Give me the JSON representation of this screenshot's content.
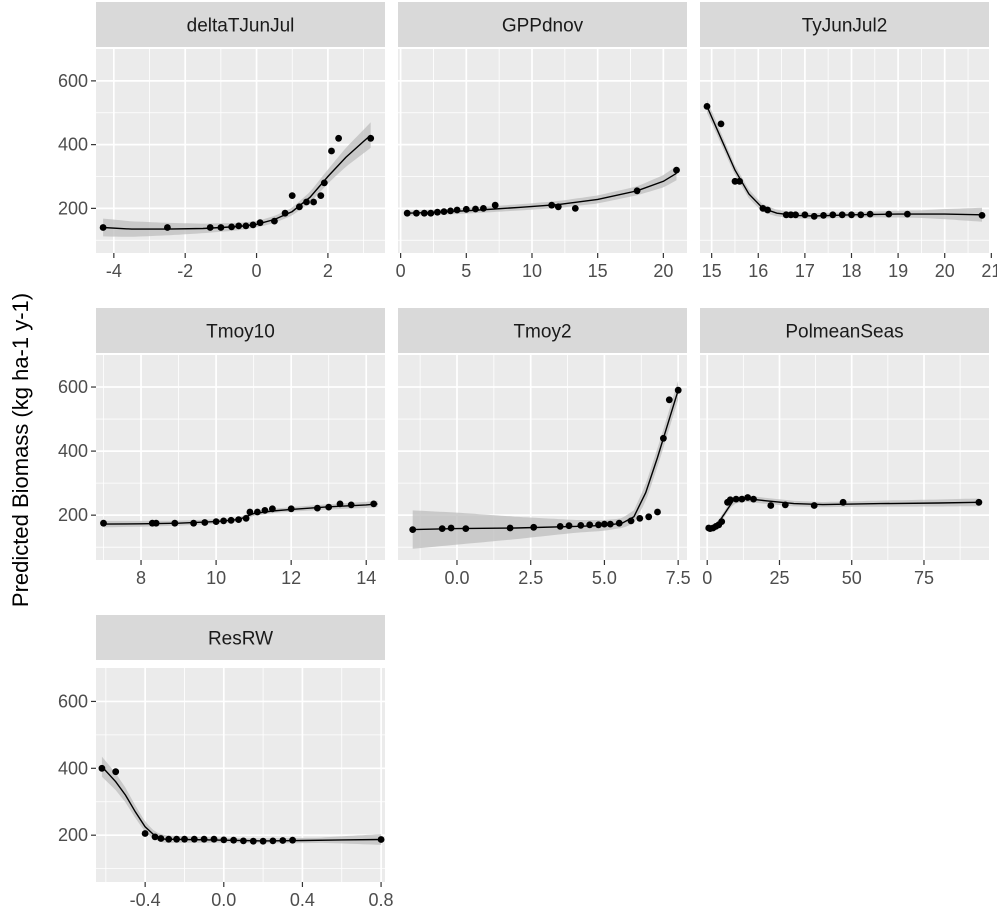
{
  "chart_data": {
    "type": "scatter",
    "layout": "facet-wrap",
    "ylabel": "Predicted Biomass (kg ha-1 y-1)",
    "xlabel": "",
    "shared_y": {
      "ylim": [
        60,
        700
      ],
      "ticks": [
        200,
        400,
        600
      ],
      "tick_labels": [
        "200",
        "400",
        "600"
      ]
    },
    "colors": {
      "panel_bg": "#ebebeb",
      "strip_bg": "#d9d9d9",
      "grid": "#ffffff",
      "points": "#000000",
      "line": "#000000",
      "ribbon": "#bdbdbd"
    },
    "panels": [
      {
        "name": "deltaTJunJul",
        "xlim": [
          -4.5,
          3.6
        ],
        "x_ticks": [
          -4,
          -2,
          0,
          2
        ],
        "x_tick_labels": [
          "-4",
          "-2",
          "0",
          "2"
        ],
        "points": [
          [
            -4.3,
            140
          ],
          [
            -2.5,
            140
          ],
          [
            -1.3,
            140
          ],
          [
            -1.0,
            140
          ],
          [
            -0.7,
            142
          ],
          [
            -0.5,
            145
          ],
          [
            -0.3,
            145
          ],
          [
            -0.1,
            148
          ],
          [
            0.1,
            155
          ],
          [
            0.5,
            160
          ],
          [
            0.8,
            185
          ],
          [
            1.0,
            240
          ],
          [
            1.2,
            205
          ],
          [
            1.4,
            220
          ],
          [
            1.6,
            220
          ],
          [
            1.8,
            240
          ],
          [
            1.9,
            280
          ],
          [
            2.1,
            380
          ],
          [
            2.3,
            420
          ],
          [
            3.2,
            420
          ]
        ],
        "curve": [
          [
            -4.3,
            140
          ],
          [
            -3.5,
            135
          ],
          [
            -2.5,
            135
          ],
          [
            -1.5,
            137
          ],
          [
            -0.5,
            143
          ],
          [
            0.0,
            150
          ],
          [
            0.5,
            165
          ],
          [
            1.0,
            190
          ],
          [
            1.5,
            235
          ],
          [
            2.0,
            300
          ],
          [
            2.5,
            360
          ],
          [
            3.0,
            410
          ],
          [
            3.2,
            430
          ]
        ],
        "ribbon_width": [
          [
            -4.3,
            28
          ],
          [
            -3.0,
            22
          ],
          [
            -1.5,
            15
          ],
          [
            0.0,
            10
          ],
          [
            1.0,
            12
          ],
          [
            2.0,
            22
          ],
          [
            3.2,
            40
          ]
        ]
      },
      {
        "name": "GPPdnov",
        "xlim": [
          -0.2,
          21.8
        ],
        "x_ticks": [
          0,
          5,
          10,
          15,
          20
        ],
        "x_tick_labels": [
          "0",
          "5",
          "10",
          "15",
          "20"
        ],
        "points": [
          [
            0.5,
            185
          ],
          [
            1.2,
            185
          ],
          [
            1.8,
            185
          ],
          [
            2.3,
            185
          ],
          [
            2.8,
            188
          ],
          [
            3.3,
            190
          ],
          [
            3.8,
            192
          ],
          [
            4.3,
            195
          ],
          [
            5.0,
            197
          ],
          [
            5.7,
            198
          ],
          [
            6.3,
            200
          ],
          [
            7.2,
            210
          ],
          [
            11.5,
            210
          ],
          [
            12.0,
            205
          ],
          [
            13.3,
            200
          ],
          [
            18.0,
            255
          ],
          [
            21.0,
            320
          ]
        ],
        "curve": [
          [
            0.5,
            185
          ],
          [
            3.0,
            188
          ],
          [
            6.0,
            195
          ],
          [
            9.0,
            203
          ],
          [
            12.0,
            212
          ],
          [
            15.0,
            228
          ],
          [
            18.0,
            255
          ],
          [
            20.0,
            285
          ],
          [
            21.0,
            310
          ]
        ],
        "ribbon_width": [
          [
            0.5,
            8
          ],
          [
            10.0,
            10
          ],
          [
            18.0,
            14
          ],
          [
            21.0,
            22
          ]
        ]
      },
      {
        "name": "TyJunJul2",
        "xlim": [
          14.75,
          20.95
        ],
        "x_ticks": [
          15,
          16,
          17,
          18,
          19,
          20,
          21
        ],
        "x_tick_labels": [
          "15",
          "16",
          "17",
          "18",
          "19",
          "20",
          "21"
        ],
        "points": [
          [
            14.9,
            520
          ],
          [
            15.2,
            465
          ],
          [
            15.5,
            285
          ],
          [
            15.6,
            285
          ],
          [
            16.1,
            200
          ],
          [
            16.2,
            195
          ],
          [
            16.6,
            180
          ],
          [
            16.7,
            180
          ],
          [
            16.8,
            180
          ],
          [
            17.0,
            180
          ],
          [
            17.2,
            175
          ],
          [
            17.4,
            178
          ],
          [
            17.6,
            180
          ],
          [
            17.8,
            180
          ],
          [
            18.0,
            180
          ],
          [
            18.2,
            180
          ],
          [
            18.4,
            182
          ],
          [
            18.8,
            182
          ],
          [
            19.2,
            182
          ],
          [
            20.8,
            178
          ]
        ],
        "curve": [
          [
            14.9,
            520
          ],
          [
            15.2,
            420
          ],
          [
            15.5,
            320
          ],
          [
            15.8,
            245
          ],
          [
            16.1,
            200
          ],
          [
            16.4,
            185
          ],
          [
            16.8,
            178
          ],
          [
            17.2,
            176
          ],
          [
            18.0,
            180
          ],
          [
            19.0,
            182
          ],
          [
            20.0,
            182
          ],
          [
            20.8,
            180
          ]
        ],
        "ribbon_width": [
          [
            14.9,
            20
          ],
          [
            15.5,
            15
          ],
          [
            16.5,
            10
          ],
          [
            18.0,
            8
          ],
          [
            19.5,
            12
          ],
          [
            20.8,
            22
          ]
        ]
      },
      {
        "name": "Tmoy10",
        "xlim": [
          6.8,
          14.5
        ],
        "x_ticks": [
          8,
          10,
          12,
          14
        ],
        "x_tick_labels": [
          "8",
          "10",
          "12",
          "14"
        ],
        "points": [
          [
            7.0,
            175
          ],
          [
            8.3,
            175
          ],
          [
            8.4,
            175
          ],
          [
            8.9,
            175
          ],
          [
            9.4,
            175
          ],
          [
            9.7,
            177
          ],
          [
            10.0,
            180
          ],
          [
            10.2,
            182
          ],
          [
            10.4,
            184
          ],
          [
            10.6,
            186
          ],
          [
            10.8,
            190
          ],
          [
            10.9,
            210
          ],
          [
            11.1,
            210
          ],
          [
            11.3,
            215
          ],
          [
            11.5,
            220
          ],
          [
            12.0,
            220
          ],
          [
            12.7,
            222
          ],
          [
            13.0,
            225
          ],
          [
            13.3,
            235
          ],
          [
            13.6,
            232
          ],
          [
            14.2,
            235
          ]
        ],
        "curve": [
          [
            7.0,
            172
          ],
          [
            8.0,
            173
          ],
          [
            9.0,
            175
          ],
          [
            10.0,
            180
          ],
          [
            10.6,
            186
          ],
          [
            11.0,
            205
          ],
          [
            11.5,
            213
          ],
          [
            12.0,
            218
          ],
          [
            13.0,
            226
          ],
          [
            14.0,
            232
          ],
          [
            14.3,
            235
          ]
        ],
        "ribbon_width": [
          [
            7.0,
            10
          ],
          [
            10.0,
            7
          ],
          [
            12.0,
            7
          ],
          [
            14.3,
            10
          ]
        ]
      },
      {
        "name": "Tmoy2",
        "xlim": [
          -2.0,
          7.8
        ],
        "x_ticks": [
          0.0,
          2.5,
          5.0,
          7.5
        ],
        "x_tick_labels": [
          "0.0",
          "2.5",
          "5.0",
          "7.5"
        ],
        "points": [
          [
            -1.5,
            155
          ],
          [
            -0.5,
            158
          ],
          [
            -0.2,
            160
          ],
          [
            0.3,
            158
          ],
          [
            1.8,
            160
          ],
          [
            2.6,
            162
          ],
          [
            3.5,
            165
          ],
          [
            3.8,
            167
          ],
          [
            4.2,
            168
          ],
          [
            4.5,
            170
          ],
          [
            4.8,
            170
          ],
          [
            5.0,
            172
          ],
          [
            5.2,
            172
          ],
          [
            5.5,
            175
          ],
          [
            5.9,
            182
          ],
          [
            6.2,
            190
          ],
          [
            6.5,
            195
          ],
          [
            6.8,
            210
          ],
          [
            7.0,
            440
          ],
          [
            7.2,
            560
          ],
          [
            7.5,
            590
          ]
        ],
        "curve": [
          [
            -1.5,
            155
          ],
          [
            0.0,
            158
          ],
          [
            2.0,
            160
          ],
          [
            4.0,
            165
          ],
          [
            5.0,
            168
          ],
          [
            5.6,
            175
          ],
          [
            6.0,
            195
          ],
          [
            6.4,
            270
          ],
          [
            6.8,
            380
          ],
          [
            7.2,
            500
          ],
          [
            7.5,
            590
          ]
        ],
        "ribbon_width": [
          [
            -1.5,
            60
          ],
          [
            0.0,
            50
          ],
          [
            2.0,
            35
          ],
          [
            4.0,
            20
          ],
          [
            5.5,
            15
          ],
          [
            6.0,
            20
          ],
          [
            6.5,
            28
          ],
          [
            7.5,
            30
          ]
        ]
      },
      {
        "name": "PolmeanSeas",
        "xlim": [
          -2.5,
          97.5
        ],
        "x_ticks": [
          0,
          25,
          50,
          75
        ],
        "x_tick_labels": [
          "0",
          "25",
          "50",
          "75"
        ],
        "points": [
          [
            0.5,
            160
          ],
          [
            1.0,
            158
          ],
          [
            2.0,
            160
          ],
          [
            3.0,
            165
          ],
          [
            4.0,
            170
          ],
          [
            5.0,
            180
          ],
          [
            7.0,
            240
          ],
          [
            8.0,
            248
          ],
          [
            10.0,
            250
          ],
          [
            12.0,
            250
          ],
          [
            14.0,
            255
          ],
          [
            16.0,
            250
          ],
          [
            22.0,
            230
          ],
          [
            27.0,
            232
          ],
          [
            37.0,
            230
          ],
          [
            47.0,
            240
          ],
          [
            94.0,
            240
          ]
        ],
        "curve": [
          [
            0.5,
            155
          ],
          [
            3.0,
            165
          ],
          [
            6.0,
            205
          ],
          [
            9.0,
            245
          ],
          [
            13.0,
            252
          ],
          [
            20.0,
            245
          ],
          [
            30.0,
            236
          ],
          [
            40.0,
            233
          ],
          [
            60.0,
            236
          ],
          [
            80.0,
            238
          ],
          [
            94.0,
            240
          ]
        ],
        "ribbon_width": [
          [
            0.5,
            8
          ],
          [
            10.0,
            10
          ],
          [
            40.0,
            8
          ],
          [
            94.0,
            12
          ]
        ]
      },
      {
        "name": "ResRW",
        "xlim": [
          -0.65,
          0.82
        ],
        "x_ticks": [
          -0.4,
          0.0,
          0.4,
          0.8
        ],
        "x_tick_labels": [
          "-0.4",
          "0.0",
          "0.4",
          "0.8"
        ],
        "points": [
          [
            -0.62,
            400
          ],
          [
            -0.55,
            390
          ],
          [
            -0.4,
            205
          ],
          [
            -0.35,
            195
          ],
          [
            -0.32,
            190
          ],
          [
            -0.28,
            188
          ],
          [
            -0.24,
            188
          ],
          [
            -0.2,
            188
          ],
          [
            -0.15,
            188
          ],
          [
            -0.1,
            188
          ],
          [
            -0.05,
            188
          ],
          [
            0.0,
            186
          ],
          [
            0.05,
            185
          ],
          [
            0.1,
            183
          ],
          [
            0.15,
            182
          ],
          [
            0.2,
            182
          ],
          [
            0.25,
            183
          ],
          [
            0.3,
            184
          ],
          [
            0.35,
            185
          ],
          [
            0.8,
            187
          ]
        ],
        "curve": [
          [
            -0.62,
            405
          ],
          [
            -0.55,
            360
          ],
          [
            -0.5,
            320
          ],
          [
            -0.45,
            270
          ],
          [
            -0.4,
            225
          ],
          [
            -0.35,
            198
          ],
          [
            -0.3,
            188
          ],
          [
            -0.2,
            187
          ],
          [
            0.0,
            185
          ],
          [
            0.2,
            183
          ],
          [
            0.4,
            184
          ],
          [
            0.6,
            186
          ],
          [
            0.8,
            187
          ]
        ],
        "ribbon_width": [
          [
            -0.62,
            30
          ],
          [
            -0.5,
            22
          ],
          [
            -0.35,
            12
          ],
          [
            0.0,
            7
          ],
          [
            0.5,
            8
          ],
          [
            0.8,
            16
          ]
        ]
      }
    ]
  }
}
